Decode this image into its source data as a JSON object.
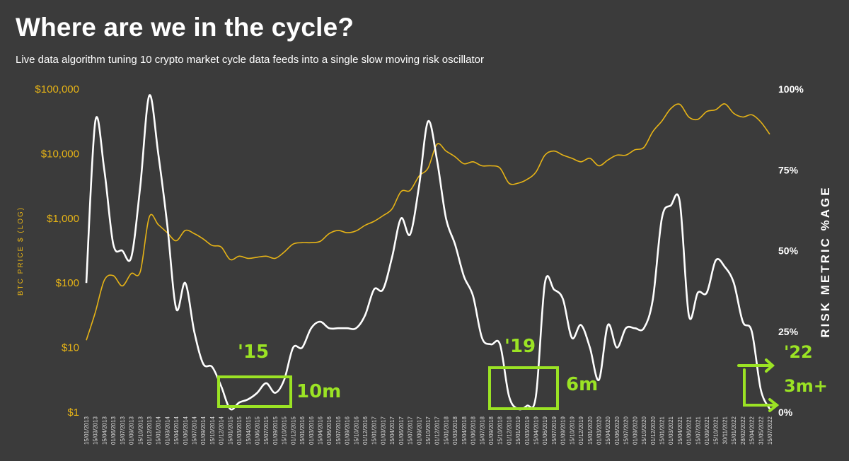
{
  "header": {
    "title": "Where are we in the cycle?",
    "subtitle": "Live data algorithm tuning 10 crypto market cycle data feeds into a single slow moving risk oscillator"
  },
  "colors": {
    "background": "#3b3b3b",
    "price": "#e7b416",
    "risk": "#ffffff",
    "annotation": "#9be324"
  },
  "annotations": {
    "y15": "'15",
    "m15": "10m",
    "y19": "'19",
    "m19": "6m",
    "y22": "'22",
    "m22": "3m+"
  },
  "chart_data": {
    "type": "line",
    "title": "Where are we in the cycle?",
    "subtitle": "Live data algorithm tuning 10 crypto market cycle data feeds into a single slow moving risk oscillator",
    "left_axis": {
      "label": "BTC PRICE $ (LOG)",
      "scale": "log",
      "ylim": [
        1,
        100000
      ],
      "ticks": [
        1,
        10,
        100,
        1000,
        10000,
        100000
      ],
      "tick_labels": [
        "$1",
        "$10",
        "$100",
        "$1,000",
        "$10,000",
        "$100,000"
      ]
    },
    "right_axis": {
      "label": "RISK METRIC %AGE",
      "ylim": [
        0,
        100
      ],
      "ticks": [
        0,
        25,
        50,
        75,
        100
      ],
      "tick_labels": [
        "0%",
        "25%",
        "50%",
        "75%",
        "100%"
      ]
    },
    "grid": false,
    "x_tick_labels": [
      "15/01/2013",
      "15/03/2013",
      "15/04/2013",
      "01/06/2013",
      "15/07/2013",
      "01/09/2013",
      "15/10/2013",
      "01/12/2013",
      "15/01/2014",
      "01/03/2014",
      "15/04/2014",
      "01/06/2014",
      "15/07/2014",
      "01/09/2014",
      "15/10/2014",
      "01/12/2014",
      "15/01/2015",
      "01/03/2015",
      "15/04/2015",
      "01/06/2015",
      "15/07/2015",
      "01/09/2015",
      "15/10/2015",
      "01/12/2015",
      "15/01/2016",
      "01/03/2016",
      "15/04/2016",
      "01/06/2016",
      "15/07/2016",
      "01/09/2016",
      "15/10/2016",
      "01/12/2016",
      "15/01/2017",
      "01/03/2017",
      "15/04/2017",
      "01/06/2017",
      "15/07/2017",
      "01/09/2017",
      "15/10/2017",
      "01/12/2017",
      "15/01/2018",
      "01/03/2018",
      "15/04/2018",
      "01/06/2018",
      "15/07/2018",
      "01/09/2018",
      "15/10/2018",
      "01/12/2018",
      "15/01/2019",
      "01/03/2019",
      "15/04/2019",
      "01/06/2019",
      "15/07/2019",
      "01/09/2019",
      "15/10/2019",
      "01/12/2019",
      "15/01/2020",
      "01/03/2020",
      "15/04/2020",
      "01/06/2020",
      "15/07/2020",
      "01/09/2020",
      "15/10/2020",
      "01/12/2020",
      "15/01/2021",
      "01/03/2021",
      "15/04/2021",
      "01/06/2021",
      "15/07/2021",
      "01/09/2021",
      "15/10/2021",
      "30/11/2021",
      "15/01/2022",
      "28/02/2022",
      "15/04/2022",
      "31/05/2022",
      "15/07/2022"
    ],
    "series": [
      {
        "name": "BTC Price",
        "axis": "left",
        "color": "#e7b416",
        "x": [
          "01/2013",
          "03/2013",
          "04/2013",
          "06/2013",
          "07/2013",
          "09/2013",
          "10/2013",
          "12/2013",
          "01/2014",
          "03/2014",
          "04/2014",
          "06/2014",
          "07/2014",
          "09/2014",
          "10/2014",
          "12/2014",
          "01/2015",
          "03/2015",
          "04/2015",
          "06/2015",
          "07/2015",
          "09/2015",
          "10/2015",
          "12/2015",
          "01/2016",
          "03/2016",
          "04/2016",
          "06/2016",
          "07/2016",
          "09/2016",
          "10/2016",
          "12/2016",
          "01/2017",
          "03/2017",
          "04/2017",
          "06/2017",
          "07/2017",
          "09/2017",
          "10/2017",
          "12/2017",
          "01/2018",
          "03/2018",
          "04/2018",
          "06/2018",
          "07/2018",
          "09/2018",
          "10/2018",
          "12/2018",
          "01/2019",
          "03/2019",
          "04/2019",
          "06/2019",
          "07/2019",
          "09/2019",
          "10/2019",
          "12/2019",
          "01/2020",
          "03/2020",
          "04/2020",
          "06/2020",
          "07/2020",
          "09/2020",
          "10/2020",
          "12/2020",
          "01/2021",
          "03/2021",
          "04/2021",
          "06/2021",
          "07/2021",
          "09/2021",
          "10/2021",
          "11/2021",
          "01/2022",
          "02/2022",
          "04/2022",
          "05/2022",
          "07/2022"
        ],
        "values": [
          13,
          35,
          110,
          130,
          90,
          140,
          150,
          1050,
          800,
          600,
          450,
          650,
          580,
          480,
          380,
          360,
          230,
          260,
          240,
          250,
          260,
          240,
          300,
          400,
          420,
          420,
          440,
          580,
          650,
          600,
          640,
          780,
          900,
          1100,
          1400,
          2600,
          2700,
          4500,
          6000,
          14000,
          11000,
          9000,
          7000,
          7500,
          6500,
          6500,
          6000,
          3500,
          3500,
          4000,
          5200,
          9500,
          11000,
          9500,
          8500,
          7500,
          8500,
          6500,
          8000,
          9500,
          9500,
          11500,
          12500,
          22000,
          32000,
          50000,
          58000,
          37000,
          34000,
          45000,
          48000,
          59000,
          42000,
          37000,
          40000,
          31000,
          20000
        ]
      },
      {
        "name": "Risk Metric",
        "axis": "right",
        "color": "#ffffff",
        "x": [
          "01/2013",
          "03/2013",
          "04/2013",
          "06/2013",
          "07/2013",
          "09/2013",
          "10/2013",
          "12/2013",
          "01/2014",
          "03/2014",
          "04/2014",
          "06/2014",
          "07/2014",
          "09/2014",
          "10/2014",
          "12/2014",
          "01/2015",
          "03/2015",
          "04/2015",
          "06/2015",
          "07/2015",
          "09/2015",
          "10/2015",
          "12/2015",
          "01/2016",
          "03/2016",
          "04/2016",
          "06/2016",
          "07/2016",
          "09/2016",
          "10/2016",
          "12/2016",
          "01/2017",
          "03/2017",
          "04/2017",
          "06/2017",
          "07/2017",
          "09/2017",
          "10/2017",
          "12/2017",
          "01/2018",
          "03/2018",
          "04/2018",
          "06/2018",
          "07/2018",
          "09/2018",
          "10/2018",
          "12/2018",
          "01/2019",
          "03/2019",
          "04/2019",
          "06/2019",
          "07/2019",
          "09/2019",
          "10/2019",
          "12/2019",
          "01/2020",
          "03/2020",
          "04/2020",
          "06/2020",
          "07/2020",
          "09/2020",
          "10/2020",
          "12/2020",
          "01/2021",
          "03/2021",
          "04/2021",
          "06/2021",
          "07/2021",
          "09/2021",
          "10/2021",
          "11/2021",
          "01/2022",
          "02/2022",
          "04/2022",
          "05/2022",
          "07/2022"
        ],
        "values": [
          40,
          90,
          75,
          52,
          50,
          48,
          70,
          98,
          80,
          58,
          32,
          40,
          25,
          15,
          14,
          8,
          1,
          3,
          4,
          6,
          9,
          6,
          10,
          20,
          20,
          26,
          28,
          26,
          26,
          26,
          26,
          30,
          38,
          38,
          48,
          60,
          55,
          70,
          90,
          78,
          60,
          52,
          42,
          36,
          23,
          21,
          21,
          5,
          1,
          2,
          5,
          40,
          38,
          35,
          23,
          27,
          20,
          10,
          27,
          20,
          26,
          26,
          26,
          35,
          60,
          64,
          65,
          30,
          37,
          37,
          47,
          45,
          40,
          28,
          25,
          7,
          1
        ]
      }
    ]
  }
}
